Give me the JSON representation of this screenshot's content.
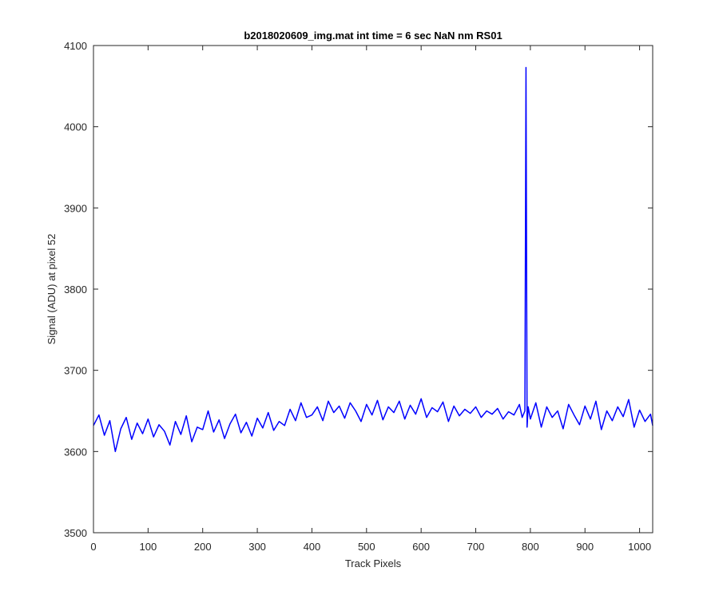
{
  "window": {
    "title": ""
  },
  "chart_data": {
    "type": "line",
    "title": "b2018020609_img.mat int time = 6 sec  NaN nm RS01",
    "xlabel": "Track Pixels",
    "ylabel": "Signal (ADU) at pixel 52",
    "xlim": [
      0,
      1024
    ],
    "ylim": [
      3500,
      4100
    ],
    "xticks": [
      0,
      100,
      200,
      300,
      400,
      500,
      600,
      700,
      800,
      900,
      1000
    ],
    "yticks": [
      3500,
      3600,
      3700,
      3800,
      3900,
      4000,
      4100
    ],
    "xtick_labels": [
      "0",
      "100",
      "200",
      "300",
      "400",
      "500",
      "600",
      "700",
      "800",
      "900",
      "1000"
    ],
    "ytick_labels": [
      "3500",
      "3600",
      "3700",
      "3800",
      "3900",
      "4000",
      "4100"
    ],
    "grid": false,
    "legend": "none",
    "series": [
      {
        "color": "#0000ff",
        "x": [
          0,
          10,
          20,
          30,
          40,
          50,
          60,
          70,
          80,
          90,
          100,
          110,
          120,
          130,
          140,
          150,
          160,
          170,
          180,
          190,
          200,
          210,
          220,
          230,
          240,
          250,
          260,
          270,
          280,
          290,
          300,
          310,
          320,
          330,
          340,
          350,
          360,
          370,
          380,
          390,
          400,
          410,
          420,
          430,
          440,
          450,
          460,
          470,
          480,
          490,
          500,
          510,
          520,
          530,
          540,
          550,
          560,
          570,
          580,
          590,
          600,
          610,
          620,
          630,
          640,
          650,
          660,
          670,
          680,
          690,
          700,
          710,
          720,
          730,
          740,
          750,
          760,
          770,
          780,
          785,
          790,
          792,
          794,
          796,
          800,
          810,
          820,
          830,
          840,
          850,
          860,
          870,
          880,
          890,
          900,
          910,
          920,
          930,
          940,
          950,
          960,
          970,
          980,
          990,
          1000,
          1010,
          1020,
          1024
        ],
        "y": [
          3632,
          3645,
          3620,
          3638,
          3600,
          3628,
          3642,
          3615,
          3635,
          3622,
          3640,
          3618,
          3633,
          3625,
          3608,
          3637,
          3621,
          3644,
          3612,
          3630,
          3627,
          3650,
          3624,
          3639,
          3616,
          3634,
          3646,
          3623,
          3636,
          3619,
          3641,
          3629,
          3648,
          3626,
          3637,
          3632,
          3652,
          3638,
          3660,
          3642,
          3645,
          3655,
          3638,
          3662,
          3648,
          3656,
          3641,
          3660,
          3650,
          3637,
          3658,
          3645,
          3663,
          3639,
          3655,
          3648,
          3662,
          3640,
          3657,
          3646,
          3665,
          3642,
          3654,
          3649,
          3661,
          3637,
          3656,
          3644,
          3652,
          3647,
          3655,
          3642,
          3650,
          3646,
          3653,
          3640,
          3649,
          3645,
          3658,
          3642,
          3650,
          4073,
          3630,
          3655,
          3640,
          3660,
          3630,
          3655,
          3642,
          3650,
          3628,
          3658,
          3645,
          3633,
          3656,
          3640,
          3662,
          3627,
          3650,
          3638,
          3655,
          3643,
          3664,
          3630,
          3651,
          3637,
          3646,
          3632
        ]
      }
    ]
  }
}
